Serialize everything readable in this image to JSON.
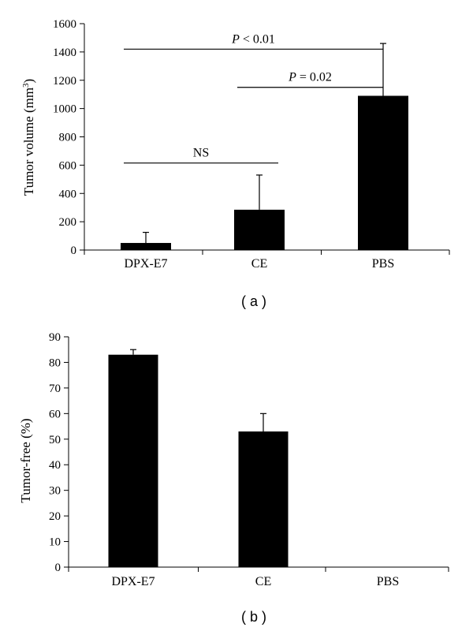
{
  "figure": {
    "panels": [
      {
        "panel_label": "( a )",
        "ylabel_prefix": "Tumor volume (mm",
        "ylabel_exp": "3",
        "ylabel_suffix": ")",
        "y_ticks": [
          "0",
          "200",
          "400",
          "600",
          "800",
          "1000",
          "1200",
          "1400",
          "1600"
        ]
      },
      {
        "panel_label": "( b )",
        "ylabel": "Tumor-free (%)",
        "y_ticks": [
          "0",
          "10",
          "20",
          "30",
          "40",
          "50",
          "60",
          "70",
          "80",
          "90"
        ]
      }
    ]
  },
  "chart_data": [
    {
      "type": "bar",
      "categories": [
        "DPX-E7",
        "CE",
        "PBS"
      ],
      "values": [
        50,
        285,
        1090
      ],
      "error_upper": [
        75,
        245,
        370
      ],
      "ylabel": "Tumor volume (mm3)",
      "ylim": [
        0,
        1600
      ],
      "y_tick_step": 200,
      "bar_color": "#000000",
      "annotations": [
        {
          "text": "NS",
          "italic_prefix": "",
          "from": "DPX-E7",
          "to": "CE",
          "y": 615
        },
        {
          "text": " = 0.02",
          "italic_prefix": "P",
          "from": "CE",
          "to": "PBS",
          "y": 1150
        },
        {
          "text": " < 0.01",
          "italic_prefix": "P",
          "from": "DPX-E7",
          "to": "PBS",
          "y": 1420
        }
      ]
    },
    {
      "type": "bar",
      "categories": [
        "DPX-E7",
        "CE",
        "PBS"
      ],
      "values": [
        83,
        53,
        0
      ],
      "error_upper": [
        2,
        7,
        0
      ],
      "ylabel": "Tumor-free (%)",
      "ylim": [
        0,
        90
      ],
      "y_tick_step": 10,
      "bar_color": "#000000"
    }
  ]
}
